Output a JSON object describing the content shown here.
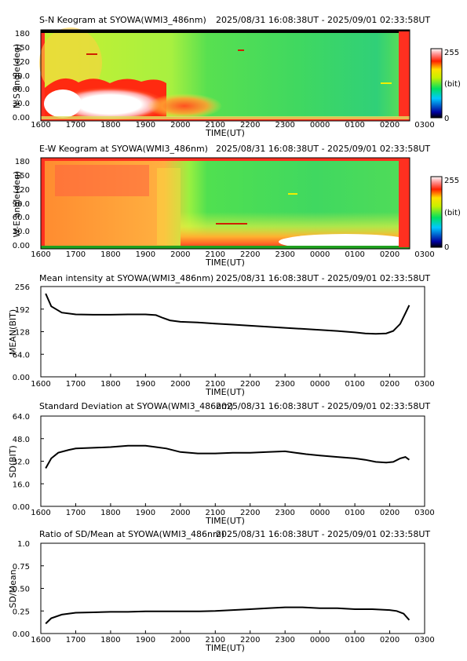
{
  "chart_data": [
    {
      "type": "heatmap",
      "title": "S-N Keogram at SYOWA(WMI3_486nm)",
      "subtitle": "2025/08/31 16:08:38UT - 2025/09/01 02:33:58UT",
      "xlabel": "TIME(UT)",
      "ylabel": "N-S angle(deg)",
      "x_ticks": [
        "1600",
        "1700",
        "1800",
        "1900",
        "2000",
        "2100",
        "2200",
        "2300",
        "0000",
        "0100",
        "0200",
        "0300"
      ],
      "y_ticks": [
        "0.00",
        "30.0",
        "60.0",
        "90.0",
        "120",
        "150",
        "180"
      ],
      "ylim": [
        0,
        180
      ],
      "colorbar": {
        "min_label": "0",
        "max_label": "255",
        "unit_label": "(bit)",
        "range": [
          0,
          255
        ]
      }
    },
    {
      "type": "heatmap",
      "title": "E-W Keogram at SYOWA(WMI3_486nm)",
      "subtitle": "2025/08/31 16:08:38UT - 2025/09/01 02:33:58UT",
      "xlabel": "TIME(UT)",
      "ylabel": "W-E angle(deg)",
      "x_ticks": [
        "1600",
        "1700",
        "1800",
        "1900",
        "2000",
        "2100",
        "2200",
        "2300",
        "0000",
        "0100",
        "0200",
        "0300"
      ],
      "y_ticks": [
        "0.00",
        "30.0",
        "60.0",
        "90.0",
        "120",
        "150",
        "180"
      ],
      "ylim": [
        0,
        180
      ],
      "colorbar": {
        "min_label": "0",
        "max_label": "255",
        "unit_label": "(bit)",
        "range": [
          0,
          255
        ]
      }
    },
    {
      "type": "line",
      "title": "Mean intensity at SYOWA(WMI3_486nm)",
      "subtitle": "2025/08/31 16:08:38UT - 2025/09/01 02:33:58UT",
      "xlabel": "TIME(UT)",
      "ylabel": "MEAN(BIT)",
      "x_ticks": [
        "1600",
        "1700",
        "1800",
        "1900",
        "2000",
        "2100",
        "2200",
        "2300",
        "0000",
        "0100",
        "0200",
        "0300"
      ],
      "y_ticks": [
        "0.00",
        "64.0",
        "128",
        "192",
        "256"
      ],
      "xlim": [
        16,
        27
      ],
      "ylim": [
        0,
        256
      ],
      "x": [
        16.14,
        16.3,
        16.6,
        17.0,
        17.5,
        18.0,
        18.5,
        19.0,
        19.3,
        19.5,
        19.7,
        20.0,
        20.5,
        21.0,
        21.5,
        22.0,
        22.5,
        23.0,
        23.5,
        24.0,
        24.5,
        25.0,
        25.3,
        25.6,
        25.9,
        26.1,
        26.3,
        26.45,
        26.56
      ],
      "y": [
        236,
        200,
        182,
        177,
        176,
        176,
        177,
        177,
        175,
        167,
        160,
        156,
        154,
        151,
        148,
        145,
        142,
        139,
        136,
        133,
        130,
        126,
        123,
        122,
        123,
        130,
        150,
        180,
        203
      ]
    },
    {
      "type": "line",
      "title": "Standard Deviation at SYOWA(WMI3_486nm)",
      "subtitle": "2025/08/31 16:08:38UT - 2025/09/01 02:33:58UT",
      "xlabel": "TIME(UT)",
      "ylabel": "SD(BIT)",
      "x_ticks": [
        "1600",
        "1700",
        "1800",
        "1900",
        "2000",
        "2100",
        "2200",
        "2300",
        "0000",
        "0100",
        "0200",
        "0300"
      ],
      "y_ticks": [
        "0.00",
        "16.0",
        "32.0",
        "48.0",
        "64.0"
      ],
      "xlim": [
        16,
        27
      ],
      "ylim": [
        0,
        64
      ],
      "x": [
        16.14,
        16.3,
        16.5,
        16.8,
        17.0,
        17.5,
        18.0,
        18.5,
        19.0,
        19.3,
        19.6,
        20.0,
        20.5,
        21.0,
        21.5,
        22.0,
        22.5,
        23.0,
        23.3,
        23.6,
        24.0,
        24.5,
        25.0,
        25.3,
        25.6,
        25.9,
        26.1,
        26.3,
        26.45,
        26.56
      ],
      "y": [
        27,
        34,
        38,
        40,
        41,
        41.5,
        42,
        43,
        43,
        42,
        41,
        38.5,
        37.5,
        37.5,
        38,
        38,
        38.5,
        39,
        38,
        37,
        36,
        35,
        34,
        33,
        31.5,
        31,
        31.5,
        34,
        35,
        33
      ]
    },
    {
      "type": "line",
      "title": "Ratio of SD/Mean at SYOWA(WMI3_486nm)",
      "subtitle": "2025/08/31 16:08:38UT - 2025/09/01 02:33:58UT",
      "xlabel": "TIME(UT)",
      "ylabel": "SD/Mean",
      "x_ticks": [
        "1600",
        "1700",
        "1800",
        "1900",
        "2000",
        "2100",
        "2200",
        "2300",
        "0000",
        "0100",
        "0200",
        "0300"
      ],
      "y_ticks": [
        "0.00",
        "0.25",
        "0.50",
        "0.75",
        "1.0"
      ],
      "xlim": [
        16,
        27
      ],
      "ylim": [
        0,
        1.0
      ],
      "x": [
        16.14,
        16.3,
        16.6,
        17.0,
        17.5,
        18.0,
        18.5,
        19.0,
        19.5,
        20.0,
        20.5,
        21.0,
        21.5,
        22.0,
        22.5,
        23.0,
        23.5,
        24.0,
        24.5,
        25.0,
        25.5,
        26.0,
        26.2,
        26.4,
        26.56
      ],
      "y": [
        0.11,
        0.17,
        0.21,
        0.23,
        0.235,
        0.24,
        0.24,
        0.245,
        0.245,
        0.245,
        0.245,
        0.25,
        0.26,
        0.27,
        0.28,
        0.29,
        0.29,
        0.28,
        0.28,
        0.27,
        0.27,
        0.26,
        0.25,
        0.22,
        0.15
      ]
    }
  ]
}
